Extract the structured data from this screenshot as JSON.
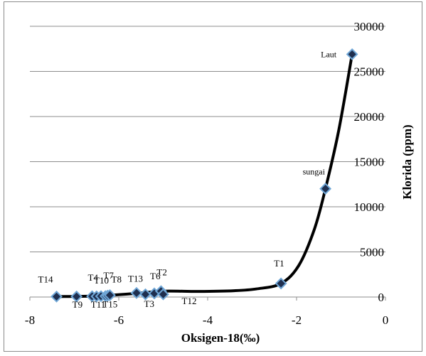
{
  "chart_data": {
    "type": "scatter",
    "xlabel": "Oksigen-18(‰)",
    "ylabel": "Klorida (ppm)",
    "xlim": [
      -8,
      0
    ],
    "ylim": [
      0,
      30000
    ],
    "x_ticks": [
      -8,
      -6,
      -4,
      -2,
      0
    ],
    "y_ticks": [
      0,
      5000,
      10000,
      15000,
      20000,
      25000,
      30000
    ],
    "grid": "horizontal",
    "marker_color": "#1f2f4f",
    "marker_edge_color": "#6fa6d6",
    "line_color": "#000000",
    "points": [
      {
        "label": "T14",
        "x": -7.4,
        "y": 50
      },
      {
        "label": "T9",
        "x": -6.95,
        "y": 60
      },
      {
        "label": "T4",
        "x": -6.6,
        "y": 80
      },
      {
        "label": "T11",
        "x": -6.5,
        "y": 70
      },
      {
        "label": "T10",
        "x": -6.4,
        "y": 90
      },
      {
        "label": "T15",
        "x": -6.3,
        "y": 100
      },
      {
        "label": "T7",
        "x": -6.25,
        "y": 150
      },
      {
        "label": "T8",
        "x": -6.2,
        "y": 200
      },
      {
        "label": "T13",
        "x": -5.6,
        "y": 450
      },
      {
        "label": "T3",
        "x": -5.4,
        "y": 300
      },
      {
        "label": "T6",
        "x": -5.2,
        "y": 400
      },
      {
        "label": "T2",
        "x": -5.05,
        "y": 650
      },
      {
        "label": "T12",
        "x": -5.0,
        "y": 300
      },
      {
        "label": "T1",
        "x": -2.35,
        "y": 1500
      },
      {
        "label": "sungai",
        "x": -1.35,
        "y": 12000
      },
      {
        "label": "Laut",
        "x": -0.75,
        "y": 26900
      }
    ],
    "trend_curve": [
      {
        "x": -7.4,
        "y": 50
      },
      {
        "x": -6.5,
        "y": 120
      },
      {
        "x": -5.6,
        "y": 400
      },
      {
        "x": -5.0,
        "y": 650
      },
      {
        "x": -4.2,
        "y": 620
      },
      {
        "x": -3.4,
        "y": 700
      },
      {
        "x": -2.9,
        "y": 900
      },
      {
        "x": -2.35,
        "y": 1500
      },
      {
        "x": -1.95,
        "y": 3500
      },
      {
        "x": -1.6,
        "y": 7500
      },
      {
        "x": -1.35,
        "y": 12000
      },
      {
        "x": -1.05,
        "y": 18500
      },
      {
        "x": -0.75,
        "y": 26900
      }
    ]
  }
}
